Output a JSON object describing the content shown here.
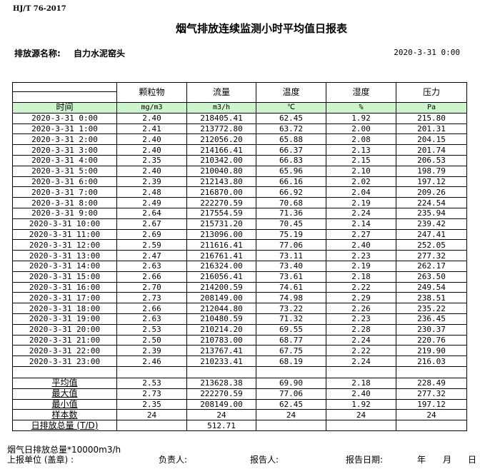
{
  "header": {
    "standard": "HJ/T  76-2017",
    "title": "烟气排放连续监测小时平均值日报表",
    "source_label": "排放源名称:",
    "source_value": "自力水泥窑头",
    "report_datetime": "2020-3-31  0:00"
  },
  "table": {
    "columns": [
      "颗粒物",
      "流量",
      "温度",
      "湿度",
      "压力"
    ],
    "time_label": "时间",
    "units": [
      "mg/m3",
      "m3/h",
      "℃",
      "%",
      "Pa"
    ],
    "unit_row_color": "#ccf5cc",
    "rows": [
      [
        "2020-3-31  0:00",
        "2.40",
        "218405.41",
        "62.45",
        "1.92",
        "215.80"
      ],
      [
        "2020-3-31  1:00",
        "2.41",
        "213772.80",
        "63.72",
        "2.00",
        "201.31"
      ],
      [
        "2020-3-31  2:00",
        "2.40",
        "212056.20",
        "65.88",
        "2.08",
        "204.15"
      ],
      [
        "2020-3-31  3:00",
        "2.40",
        "214166.41",
        "66.37",
        "2.13",
        "201.74"
      ],
      [
        "2020-3-31  4:00",
        "2.35",
        "210342.00",
        "66.83",
        "2.15",
        "206.53"
      ],
      [
        "2020-3-31  5:00",
        "2.40",
        "210040.80",
        "65.96",
        "2.10",
        "198.79"
      ],
      [
        "2020-3-31  6:00",
        "2.39",
        "212143.80",
        "66.16",
        "2.02",
        "197.12"
      ],
      [
        "2020-3-31  7:00",
        "2.48",
        "216870.00",
        "66.92",
        "2.04",
        "209.26"
      ],
      [
        "2020-3-31  8:00",
        "2.49",
        "222270.59",
        "70.68",
        "2.19",
        "224.54"
      ],
      [
        "2020-3-31  9:00",
        "2.64",
        "217554.59",
        "71.36",
        "2.24",
        "235.94"
      ],
      [
        "2020-3-31  10:00",
        "2.67",
        "215731.20",
        "70.45",
        "2.14",
        "239.42"
      ],
      [
        "2020-3-31  11:00",
        "2.69",
        "213096.00",
        "75.19",
        "2.27",
        "247.41"
      ],
      [
        "2020-3-31  12:00",
        "2.59",
        "211616.41",
        "77.06",
        "2.40",
        "252.05"
      ],
      [
        "2020-3-31  13:00",
        "2.47",
        "216761.41",
        "73.11",
        "2.23",
        "277.32"
      ],
      [
        "2020-3-31  14:00",
        "2.63",
        "216324.00",
        "73.40",
        "2.19",
        "262.17"
      ],
      [
        "2020-3-31  15:00",
        "2.66",
        "216056.41",
        "73.61",
        "2.18",
        "263.50"
      ],
      [
        "2020-3-31  16:00",
        "2.70",
        "214200.59",
        "74.61",
        "2.22",
        "249.54"
      ],
      [
        "2020-3-31  17:00",
        "2.73",
        "208149.00",
        "74.98",
        "2.29",
        "238.51"
      ],
      [
        "2020-3-31  18:00",
        "2.66",
        "212044.80",
        "73.22",
        "2.26",
        "235.22"
      ],
      [
        "2020-3-31  19:00",
        "2.63",
        "210480.59",
        "71.32",
        "2.23",
        "236.45"
      ],
      [
        "2020-3-31  20:00",
        "2.53",
        "210214.20",
        "69.55",
        "2.28",
        "230.37"
      ],
      [
        "2020-3-31  21:00",
        "2.50",
        "210783.00",
        "68.77",
        "2.24",
        "220.76"
      ],
      [
        "2020-3-31  22:00",
        "2.39",
        "213767.41",
        "67.75",
        "2.22",
        "219.90"
      ],
      [
        "2020-3-31  23:00",
        "2.46",
        "210233.41",
        "68.19",
        "2.24",
        "216.03"
      ]
    ],
    "summary": [
      [
        "平均值",
        "2.53",
        "213628.38",
        "69.90",
        "2.18",
        "228.49"
      ],
      [
        "最大值",
        "2.73",
        "222270.59",
        "77.06",
        "2.40",
        "277.32"
      ],
      [
        "最小值",
        "2.35",
        "208149.00",
        "62.45",
        "1.92",
        "197.12"
      ],
      [
        "样本数",
        "24",
        "24",
        "24",
        "24",
        "24"
      ],
      [
        "日排放总量 (T/D)",
        "",
        "512.71",
        "",
        "",
        ""
      ]
    ]
  },
  "footer": {
    "note": "烟气日排放总量*10000m3/h",
    "unit_label": "上报单位 (盖章) :",
    "responsible_label": "负责人:",
    "reporter_label": "报告人:",
    "report_date_label": "报告日期:",
    "year": "年",
    "month": "月",
    "day": "日"
  }
}
